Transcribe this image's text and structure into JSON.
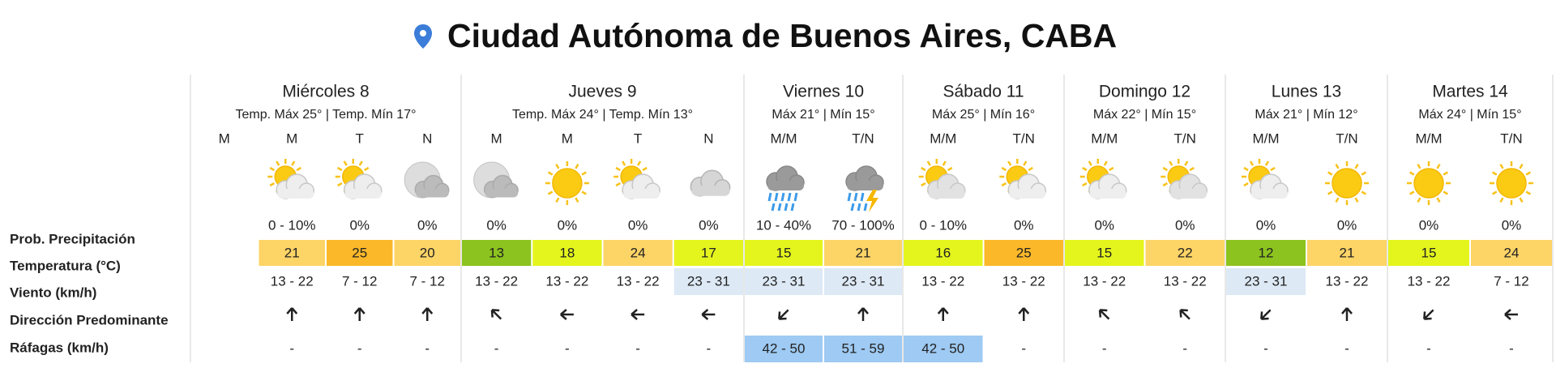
{
  "header": {
    "title": "Ciudad Autónoma de Buenos Aires, CABA"
  },
  "row_labels": [
    "Prob. Precipitación",
    "Temperatura (°C)",
    "Viento (km/h)",
    "Dirección Predominante",
    "Ráfagas (km/h)"
  ],
  "days": [
    {
      "name": "Miércoles 8",
      "summary": "Temp. Máx 25° | Temp. Mín 17°",
      "periods": [
        {
          "period": "M"
        },
        {
          "period": "M",
          "precipitation": "0 - 10%",
          "temperature": 21,
          "wind": "13 - 22",
          "gusts": "-"
        },
        {
          "period": "T",
          "precipitation": "0%",
          "temperature": 25,
          "wind": "7 - 12",
          "gusts": "-"
        },
        {
          "period": "N",
          "precipitation": "0%",
          "temperature": 20,
          "wind": "7 - 12",
          "gusts": "-"
        }
      ]
    },
    {
      "name": "Jueves 9",
      "summary": "Temp. Máx 24° | Temp. Mín 13°",
      "periods": [
        {
          "period": "M",
          "precipitation": "0%",
          "temperature": 13,
          "wind": "13 - 22",
          "gusts": "-"
        },
        {
          "period": "M",
          "precipitation": "0%",
          "temperature": 18,
          "wind": "13 - 22",
          "gusts": "-"
        },
        {
          "period": "T",
          "precipitation": "0%",
          "temperature": 24,
          "wind": "13 - 22",
          "gusts": "-"
        },
        {
          "period": "N",
          "precipitation": "0%",
          "temperature": 17,
          "wind": "23 - 31",
          "gusts": "-"
        }
      ]
    },
    {
      "name": "Viernes 10",
      "summary": "Máx 21° | Mín 15°",
      "periods": [
        {
          "period": "M/M",
          "precipitation": "10 - 40%",
          "temperature": 15,
          "wind": "23 - 31",
          "gusts": "42 - 50"
        },
        {
          "period": "T/N",
          "precipitation": "70 - 100%",
          "temperature": 21,
          "wind": "23 - 31",
          "gusts": "51 - 59"
        }
      ]
    },
    {
      "name": "Sábado 11",
      "summary": "Máx 25° | Mín 16°",
      "periods": [
        {
          "period": "M/M",
          "precipitation": "0 - 10%",
          "temperature": 16,
          "wind": "13 - 22",
          "gusts": "42 - 50"
        },
        {
          "period": "T/N",
          "precipitation": "0%",
          "temperature": 25,
          "wind": "13 - 22",
          "gusts": "-"
        }
      ]
    },
    {
      "name": "Domingo 12",
      "summary": "Máx 22° | Mín 15°",
      "periods": [
        {
          "period": "M/M",
          "precipitation": "0%",
          "temperature": 15,
          "wind": "13 - 22",
          "gusts": "-"
        },
        {
          "period": "T/N",
          "precipitation": "0%",
          "temperature": 22,
          "wind": "13 - 22",
          "gusts": "-"
        }
      ]
    },
    {
      "name": "Lunes 13",
      "summary": "Máx 21° | Mín 12°",
      "periods": [
        {
          "period": "M/M",
          "precipitation": "0%",
          "temperature": 12,
          "wind": "23 - 31",
          "gusts": "-"
        },
        {
          "period": "T/N",
          "precipitation": "0%",
          "temperature": 21,
          "wind": "13 - 22",
          "gusts": "-"
        }
      ]
    },
    {
      "name": "Martes 14",
      "summary": "Máx 24° | Mín 15°",
      "periods": [
        {
          "period": "M/M",
          "precipitation": "0%",
          "temperature": 15,
          "wind": "13 - 22",
          "gusts": "-"
        },
        {
          "period": "T/N",
          "precipitation": "0%",
          "temperature": 24,
          "wind": "7 - 12",
          "gusts": "-"
        }
      ]
    }
  ]
}
